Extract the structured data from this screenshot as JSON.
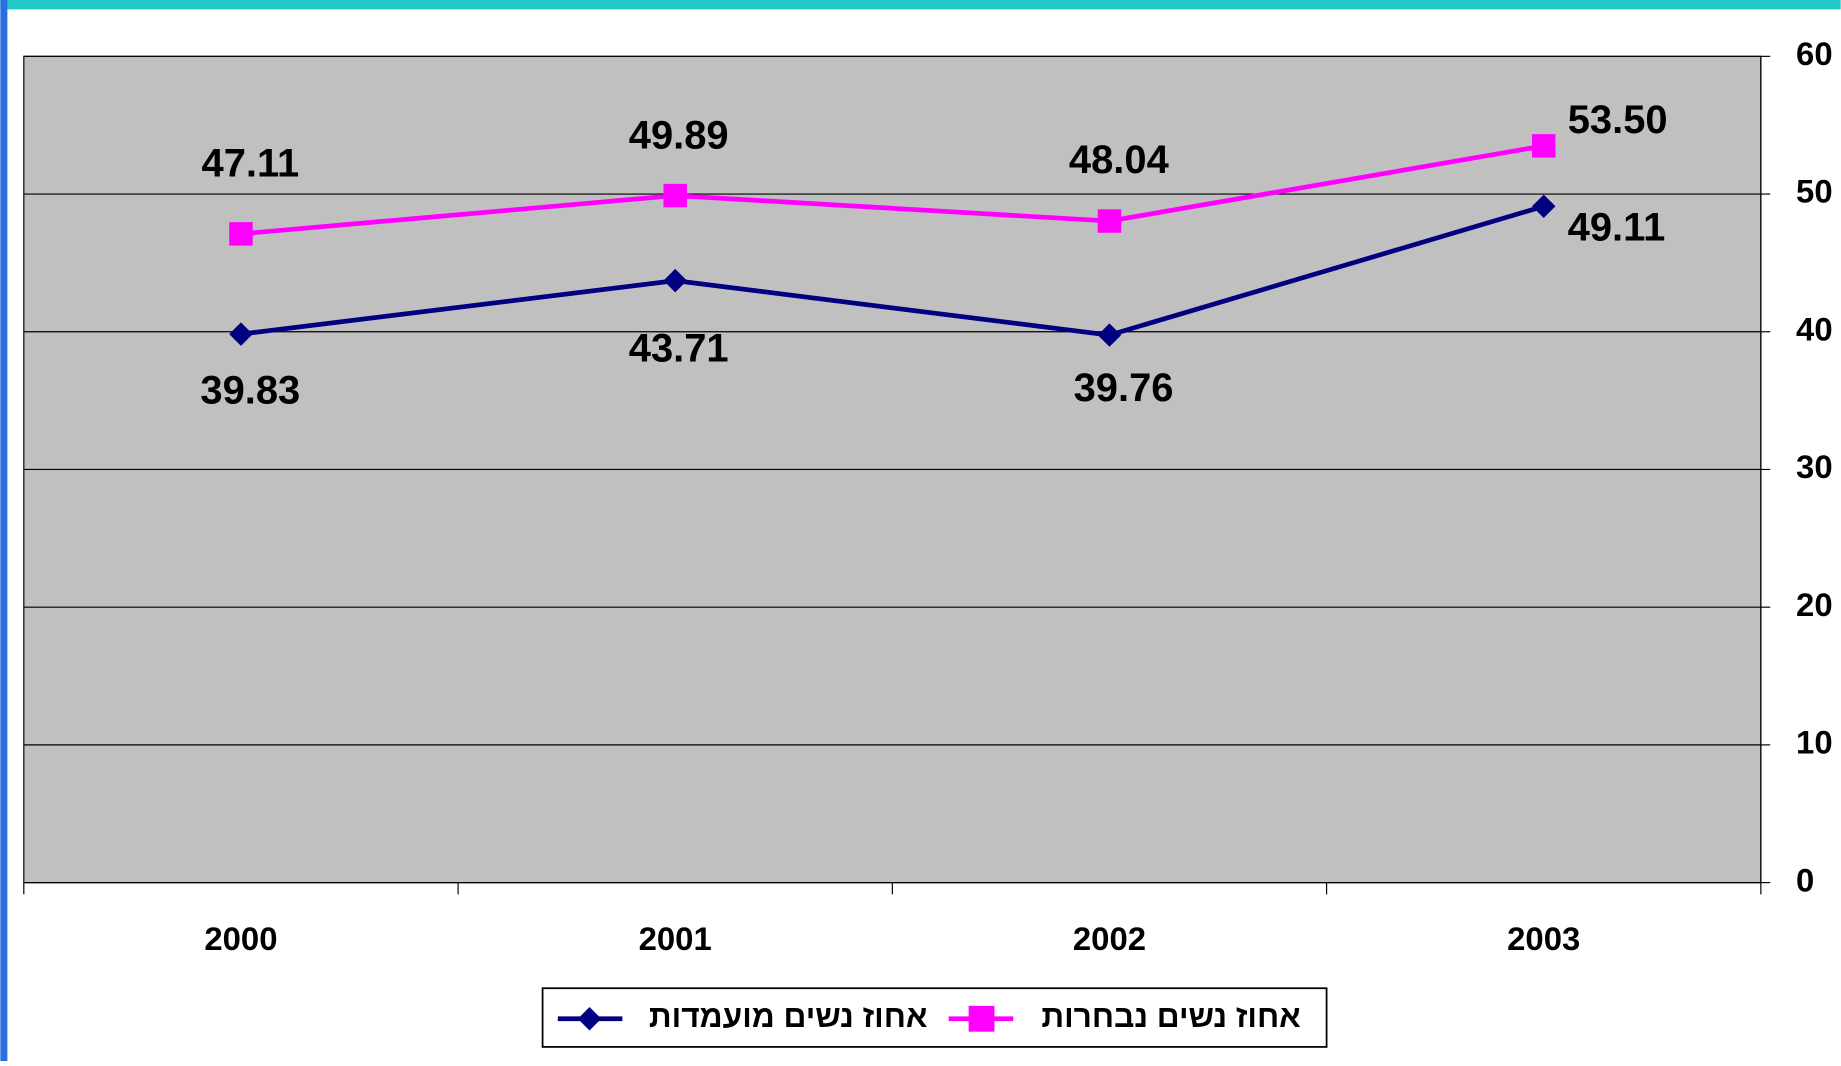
{
  "chart_data": {
    "type": "line",
    "categories": [
      "2000",
      "2001",
      "2002",
      "2003"
    ],
    "series": [
      {
        "name": "אחוז נשים מועמדות",
        "color": "#000080",
        "marker": "diamond",
        "values": [
          39.83,
          43.71,
          39.76,
          49.11
        ],
        "value_labels": [
          "39.83",
          "43.71",
          "39.76",
          "49.11"
        ]
      },
      {
        "name": "אחוז נשים נבחרות",
        "color": "#ff00ff",
        "marker": "square",
        "values": [
          47.11,
          49.89,
          48.04,
          53.5
        ],
        "value_labels": [
          "47.11",
          "49.89",
          "48.04",
          "53.50"
        ]
      }
    ],
    "ylim": [
      0,
      60
    ],
    "yticks": [
      0,
      10,
      20,
      30,
      40,
      50,
      60
    ],
    "grid": true,
    "y_axis_side": "right",
    "legend": "bottom"
  }
}
